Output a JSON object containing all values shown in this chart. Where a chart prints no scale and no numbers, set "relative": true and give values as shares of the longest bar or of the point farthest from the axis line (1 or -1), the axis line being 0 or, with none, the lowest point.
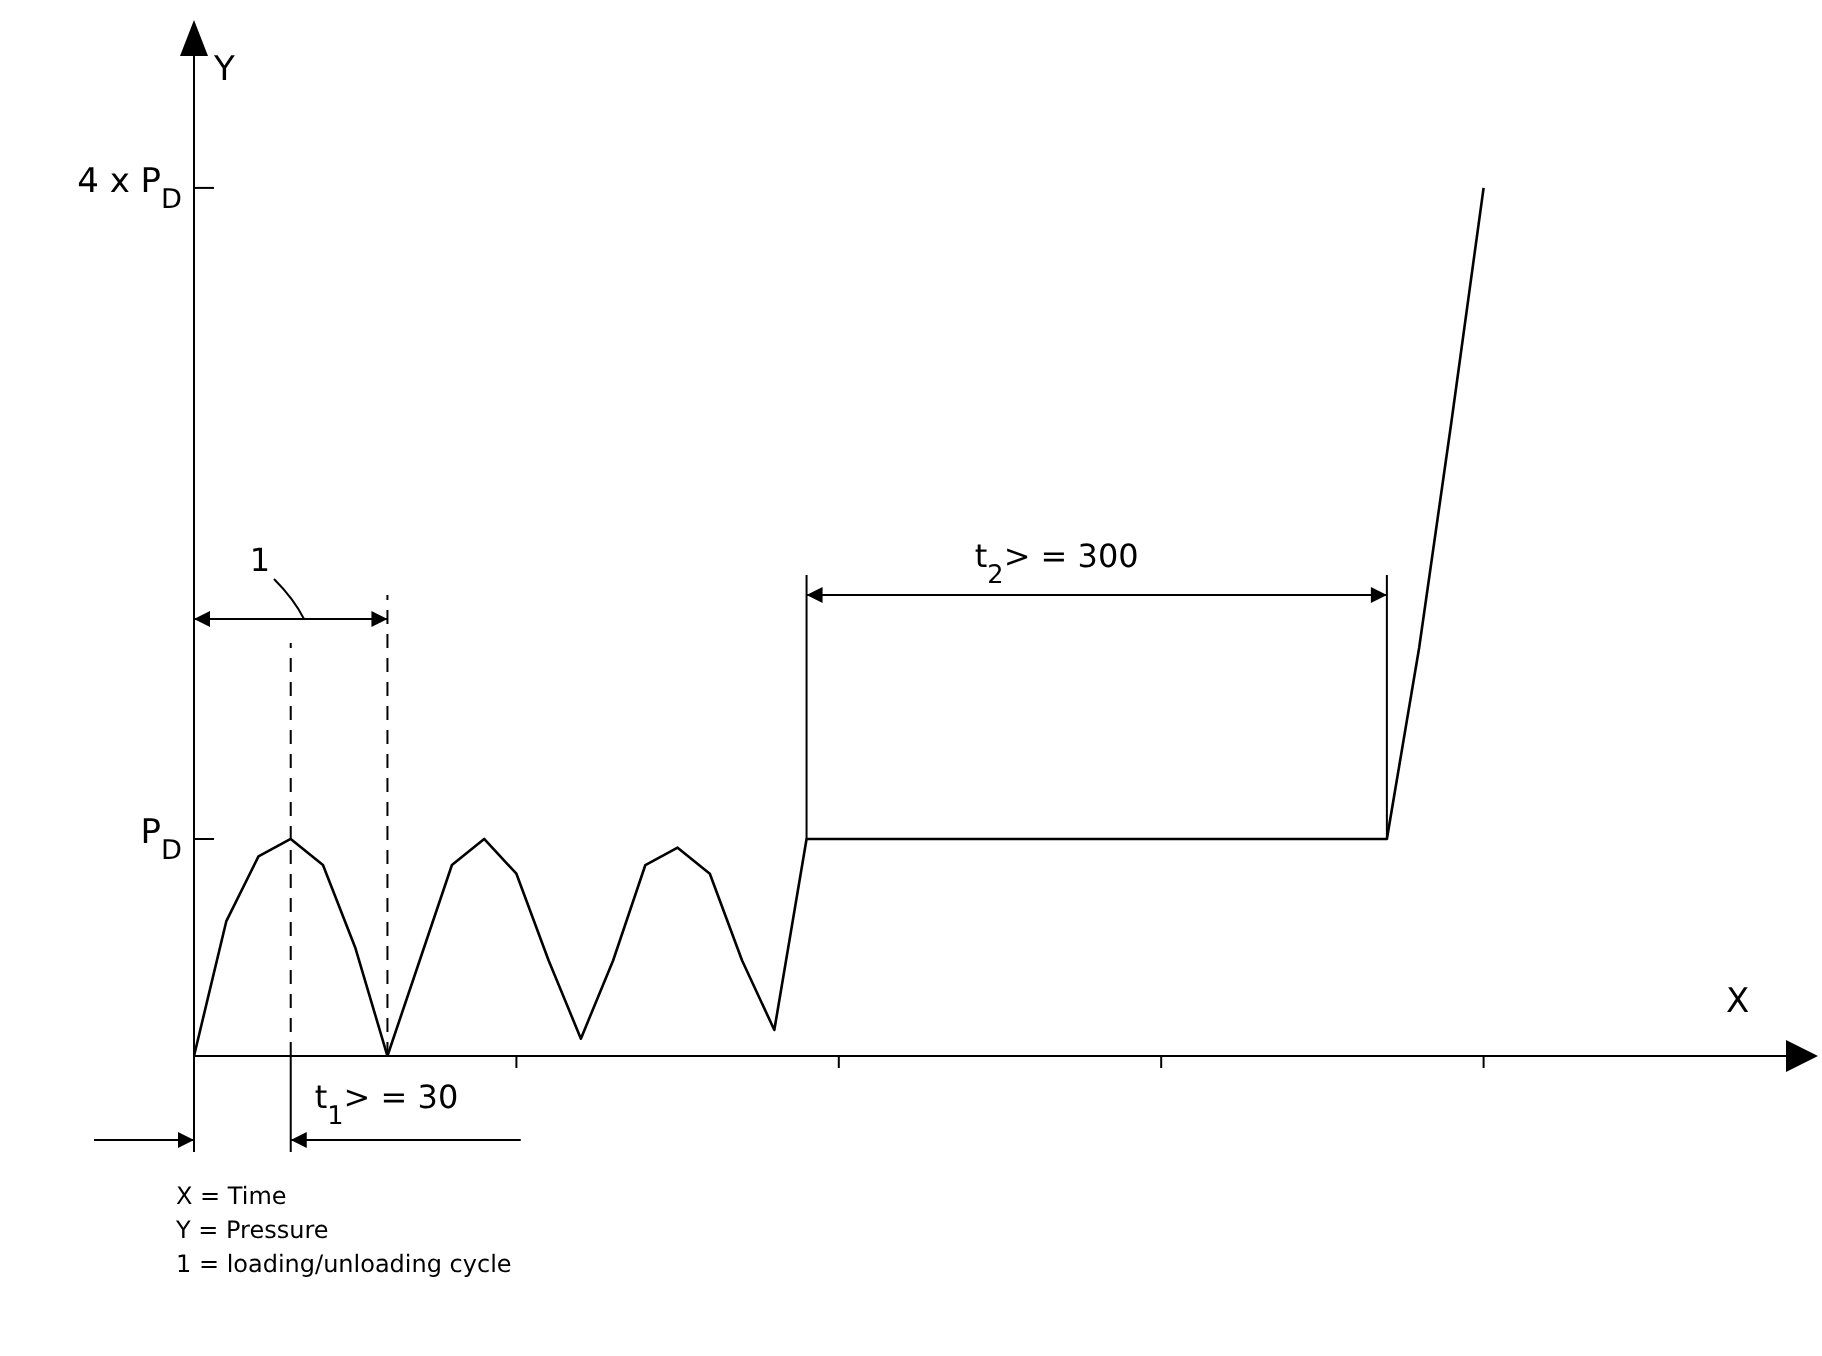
{
  "chart_data": {
    "type": "line",
    "ylabel": "Y",
    "categories": [
      null,
      null,
      null,
      null,
      null,
      null,
      null,
      null,
      null,
      null,
      null,
      null,
      null,
      null,
      null,
      null,
      null,
      null,
      null,
      null,
      null,
      null,
      null,
      null,
      null,
      null,
      null,
      null,
      null,
      null,
      null,
      null,
      null,
      null,
      null,
      null,
      null,
      null,
      null,
      null,
      null
    ],
    "relative": true,
    "marker": "none",
    "line_style": "solid",
    "series": [
      {
        "color": "#000000",
        "values": [
          0,
          0.155,
          0.23,
          0.25,
          0.22,
          0.125,
          0,
          0.11,
          0.22,
          0.25,
          0.21,
          0.11,
          0.02,
          0.11,
          0.22,
          0.24,
          0.21,
          0.11,
          0.03,
          0.25,
          0.25,
          0.25,
          0.25,
          0.25,
          0.25,
          0.25,
          0.25,
          0.25,
          0.25,
          0.25,
          0.25,
          0.25,
          0.25,
          0.25,
          0.25,
          0.25,
          0.25,
          0.25,
          0.47,
          0.73,
          1
        ]
      }
    ],
    "annotations": [
      "P$_{D}$",
      "4 x P$_{D}$",
      "1",
      "t$_{1}$> = 30",
      "t$_{2}$> = 300",
      "X",
      "X = Time",
      "Y = Pressure",
      "1 = loading/unloading cycle"
    ]
  }
}
